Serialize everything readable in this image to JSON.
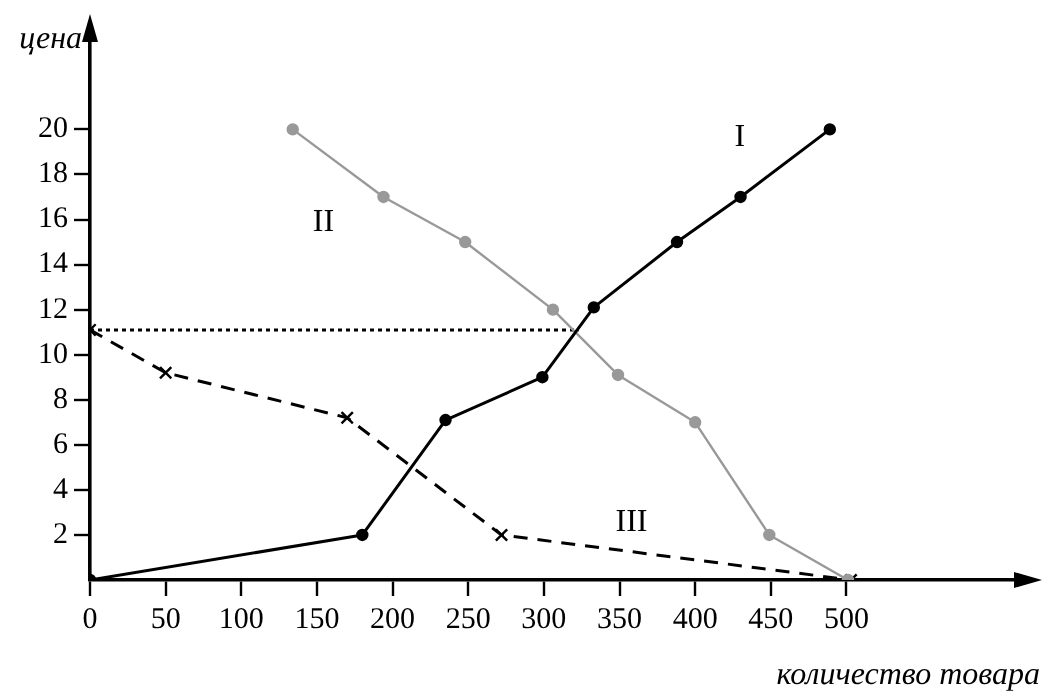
{
  "chart_data": {
    "type": "line",
    "xlabel": "количество товара",
    "ylabel": "цена",
    "xlim": [
      0,
      620
    ],
    "ylim": [
      0,
      24.5
    ],
    "xticks": [
      {
        "value": 0,
        "label": "0"
      },
      50,
      100,
      150,
      200,
      250,
      300,
      350,
      400,
      450,
      500
    ],
    "yticks": [
      2,
      4,
      6,
      8,
      10,
      12,
      14,
      16,
      18,
      20
    ],
    "grid": false,
    "legend": false,
    "series": [
      {
        "name": "I",
        "color": "#000000",
        "marker": "circle",
        "line_style": "solid",
        "x": [
          0,
          180,
          235,
          299,
          333,
          388,
          430,
          489
        ],
        "values": [
          0,
          2,
          7.1,
          9,
          12.1,
          15,
          17,
          20
        ]
      },
      {
        "name": "II",
        "color": "#999999",
        "marker": "circle",
        "line_style": "solid",
        "x": [
          134,
          194,
          248,
          306,
          349,
          400,
          449,
          501
        ],
        "values": [
          20,
          17,
          15,
          12,
          9.1,
          7,
          2,
          0
        ]
      },
      {
        "name": "III",
        "color": "#000000",
        "marker": "cross",
        "line_style": "dashed",
        "x": [
          0,
          50,
          170,
          272,
          503
        ],
        "values": [
          11.1,
          9.2,
          7.2,
          2,
          0
        ]
      },
      {
        "color": "#000000",
        "marker": "none",
        "line_style": "dotted",
        "x": [
          0,
          323
        ],
        "values": [
          11.1,
          11.1
        ]
      }
    ]
  }
}
